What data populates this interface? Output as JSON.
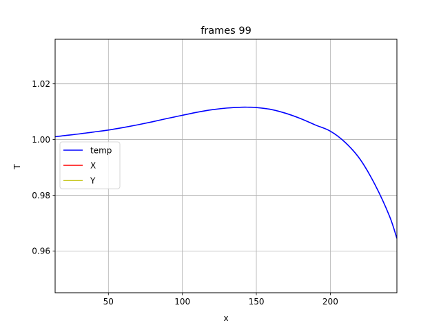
{
  "chart_data": {
    "type": "line",
    "title": "frames 99",
    "xlabel": "x",
    "ylabel": "T",
    "xlim": [
      14,
      245
    ],
    "ylim": [
      0.945,
      1.036
    ],
    "xticks": [
      50,
      100,
      150,
      200
    ],
    "xtick_labels": [
      "50",
      "100",
      "150",
      "200"
    ],
    "yticks": [
      0.96,
      0.98,
      1.0,
      1.02
    ],
    "ytick_labels": [
      "0.96",
      "0.98",
      "1.00",
      "1.02"
    ],
    "grid": true,
    "legend_position": "center-left",
    "legend": [
      {
        "label": "temp",
        "color": "#0000ff"
      },
      {
        "label": "X",
        "color": "#ff0000"
      },
      {
        "label": "Y",
        "color": "#bfbf00"
      }
    ],
    "series": [
      {
        "name": "temp",
        "color": "#0000ff",
        "x": [
          14,
          20,
          30,
          40,
          50,
          60,
          70,
          80,
          90,
          100,
          110,
          120,
          130,
          140,
          145,
          150,
          160,
          170,
          180,
          190,
          200,
          210,
          220,
          230,
          240,
          245
        ],
        "y": [
          1.001,
          1.0014,
          1.002,
          1.0027,
          1.0034,
          1.0043,
          1.0053,
          1.0064,
          1.0076,
          1.0087,
          1.0098,
          1.0107,
          1.0113,
          1.0116,
          1.0116,
          1.0115,
          1.0108,
          1.0094,
          1.0075,
          1.0052,
          1.003,
          0.999,
          0.993,
          0.984,
          0.9725,
          0.9645
        ]
      },
      {
        "name": "X",
        "color": "#ff0000",
        "x": [],
        "y": []
      },
      {
        "name": "Y",
        "color": "#bfbf00",
        "x": [],
        "y": []
      }
    ]
  }
}
